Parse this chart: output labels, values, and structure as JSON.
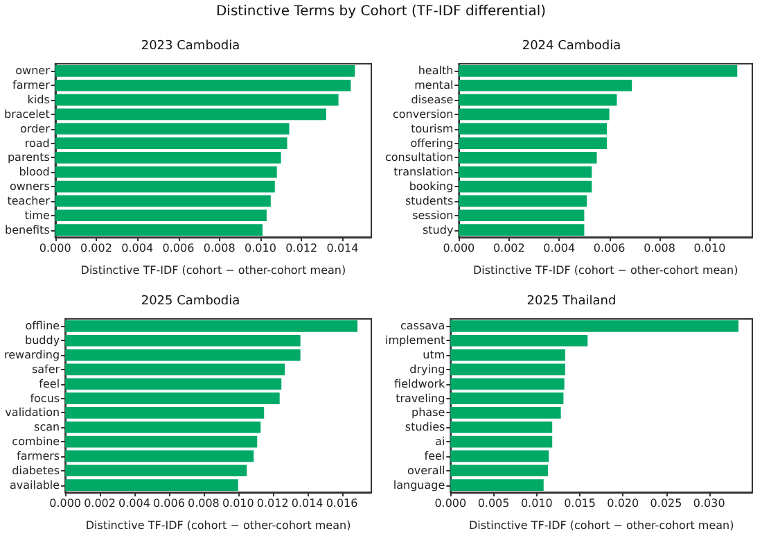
{
  "chart_data": [
    {
      "type": "bar",
      "orientation": "horizontal",
      "title": "2023 Cambodia",
      "xlabel": "Distinctive TF-IDF (cohort − other-cohort mean)",
      "annotations": [
        "Distinctive Terms by Cohort (TF-IDF differential)"
      ],
      "categories": [
        "owner",
        "farmer",
        "kids",
        "bracelet",
        "order",
        "road",
        "parents",
        "blood",
        "owners",
        "teacher",
        "time",
        "benefits"
      ],
      "values": [
        0.0146,
        0.0144,
        0.0138,
        0.0132,
        0.0114,
        0.0113,
        0.011,
        0.0108,
        0.0107,
        0.0105,
        0.0103,
        0.0101
      ],
      "color": "#00aa66",
      "xlim": [
        0,
        0.0154
      ],
      "xticks": [
        {
          "value": 0,
          "label": "0.000"
        },
        {
          "value": 0.002,
          "label": "0.002"
        },
        {
          "value": 0.004,
          "label": "0.004"
        },
        {
          "value": 0.006,
          "label": "0.006"
        },
        {
          "value": 0.008,
          "label": "0.008"
        },
        {
          "value": 0.01,
          "label": "0.010"
        },
        {
          "value": 0.012,
          "label": "0.012"
        },
        {
          "value": 0.014,
          "label": "0.014"
        }
      ]
    },
    {
      "type": "bar",
      "orientation": "horizontal",
      "title": "2024 Cambodia",
      "xlabel": "Distinctive TF-IDF (cohort − other-cohort mean)",
      "categories": [
        "health",
        "mental",
        "disease",
        "conversion",
        "tourism",
        "offering",
        "consultation",
        "translation",
        "booking",
        "students",
        "session",
        "study"
      ],
      "values": [
        0.0111,
        0.0069,
        0.0063,
        0.006,
        0.0059,
        0.0059,
        0.0055,
        0.0053,
        0.0053,
        0.0051,
        0.005,
        0.005
      ],
      "color": "#00aa66",
      "xlim": [
        0,
        0.0117
      ],
      "xticks": [
        {
          "value": 0,
          "label": "0.000"
        },
        {
          "value": 0.002,
          "label": "0.002"
        },
        {
          "value": 0.004,
          "label": "0.004"
        },
        {
          "value": 0.006,
          "label": "0.006"
        },
        {
          "value": 0.008,
          "label": "0.008"
        },
        {
          "value": 0.01,
          "label": "0.010"
        }
      ]
    },
    {
      "type": "bar",
      "orientation": "horizontal",
      "title": "2025 Cambodia",
      "xlabel": "Distinctive TF-IDF (cohort − other-cohort mean)",
      "categories": [
        "offline",
        "buddy",
        "rewarding",
        "safer",
        "feel",
        "focus",
        "validation",
        "scan",
        "combine",
        "farmers",
        "diabetes",
        "available"
      ],
      "values": [
        0.0169,
        0.0136,
        0.0136,
        0.0127,
        0.0125,
        0.0124,
        0.0115,
        0.0113,
        0.0111,
        0.0109,
        0.0105,
        0.01
      ],
      "color": "#00aa66",
      "xlim": [
        0,
        0.0177
      ],
      "xticks": [
        {
          "value": 0,
          "label": "0.000"
        },
        {
          "value": 0.002,
          "label": "0.002"
        },
        {
          "value": 0.004,
          "label": "0.004"
        },
        {
          "value": 0.006,
          "label": "0.006"
        },
        {
          "value": 0.008,
          "label": "0.008"
        },
        {
          "value": 0.01,
          "label": "0.010"
        },
        {
          "value": 0.012,
          "label": "0.012"
        },
        {
          "value": 0.014,
          "label": "0.014"
        },
        {
          "value": 0.016,
          "label": "0.016"
        }
      ]
    },
    {
      "type": "bar",
      "orientation": "horizontal",
      "title": "2025 Thailand",
      "xlabel": "Distinctive TF-IDF (cohort − other-cohort mean)",
      "categories": [
        "cassava",
        "implement",
        "utm",
        "drying",
        "fieldwork",
        "traveling",
        "phase",
        "studies",
        "ai",
        "feel",
        "overall",
        "language"
      ],
      "values": [
        0.0334,
        0.0159,
        0.0133,
        0.0133,
        0.0132,
        0.0131,
        0.0128,
        0.0118,
        0.0118,
        0.0114,
        0.0113,
        0.0108
      ],
      "color": "#00aa66",
      "xlim": [
        0,
        0.035
      ],
      "xticks": [
        {
          "value": 0,
          "label": "0.000"
        },
        {
          "value": 0.005,
          "label": "0.005"
        },
        {
          "value": 0.01,
          "label": "0.010"
        },
        {
          "value": 0.015,
          "label": "0.015"
        },
        {
          "value": 0.02,
          "label": "0.020"
        },
        {
          "value": 0.025,
          "label": "0.025"
        },
        {
          "value": 0.03,
          "label": "0.030"
        }
      ]
    }
  ]
}
